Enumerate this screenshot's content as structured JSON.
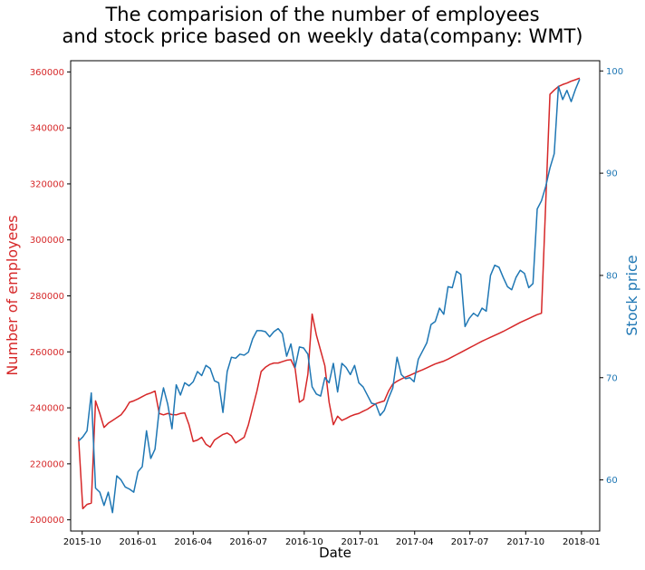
{
  "chart_data": {
    "type": "line",
    "title_lines": [
      "The comparision of the number of employees",
      "and stock price based on weekly data(company: WMT)"
    ],
    "xlabel": "Date",
    "ylabel_left": "Number of employees",
    "ylabel_right": "Stock price",
    "x_ticks": [
      "2015-10",
      "2016-01",
      "2016-04",
      "2016-07",
      "2016-10",
      "2017-01",
      "2017-04",
      "2017-07",
      "2017-10",
      "2018-01"
    ],
    "xlim": [
      "2015-09-12",
      "2018-01-31"
    ],
    "y_left_ticks": [
      200000,
      220000,
      240000,
      260000,
      280000,
      300000,
      320000,
      340000,
      360000
    ],
    "y_left_lim": [
      196000,
      364000
    ],
    "y_right_ticks": [
      60,
      70,
      80,
      90,
      100
    ],
    "y_right_lim": [
      55.0,
      101.0
    ],
    "grid": false,
    "colors": {
      "employees": "#d62728",
      "stock": "#1f77b4"
    },
    "series": [
      {
        "axis": "left",
        "color": "#d62728",
        "points": [
          [
            "2015-09-25",
            229500
          ],
          [
            "2015-10-02",
            204000
          ],
          [
            "2015-10-09",
            205500
          ],
          [
            "2015-10-16",
            206000
          ],
          [
            "2015-10-23",
            242500
          ],
          [
            "2015-10-30",
            238000
          ],
          [
            "2015-11-06",
            233000
          ],
          [
            "2015-11-13",
            234500
          ],
          [
            "2015-11-20",
            235500
          ],
          [
            "2015-11-27",
            236500
          ],
          [
            "2015-12-04",
            237500
          ],
          [
            "2015-12-11",
            239500
          ],
          [
            "2015-12-18",
            242000
          ],
          [
            "2015-12-25",
            242500
          ],
          [
            "2016-01-01",
            243200
          ],
          [
            "2016-01-08",
            244000
          ],
          [
            "2016-01-15",
            244800
          ],
          [
            "2016-01-22",
            245300
          ],
          [
            "2016-01-29",
            246000
          ],
          [
            "2016-02-05",
            238000
          ],
          [
            "2016-02-12",
            237500
          ],
          [
            "2016-02-19",
            238000
          ],
          [
            "2016-02-26",
            237600
          ],
          [
            "2016-03-04",
            237500
          ],
          [
            "2016-03-11",
            238000
          ],
          [
            "2016-03-18",
            238200
          ],
          [
            "2016-03-25",
            234000
          ],
          [
            "2016-04-01",
            228000
          ],
          [
            "2016-04-08",
            228500
          ],
          [
            "2016-04-15",
            229500
          ],
          [
            "2016-04-22",
            227000
          ],
          [
            "2016-04-29",
            226000
          ],
          [
            "2016-05-06",
            228500
          ],
          [
            "2016-05-13",
            229500
          ],
          [
            "2016-05-20",
            230500
          ],
          [
            "2016-05-27",
            231000
          ],
          [
            "2016-06-03",
            230000
          ],
          [
            "2016-06-10",
            227500
          ],
          [
            "2016-06-17",
            228500
          ],
          [
            "2016-06-24",
            229500
          ],
          [
            "2016-07-01",
            234000
          ],
          [
            "2016-07-08",
            240000
          ],
          [
            "2016-07-15",
            246000
          ],
          [
            "2016-07-22",
            253000
          ],
          [
            "2016-07-29",
            254500
          ],
          [
            "2016-08-05",
            255500
          ],
          [
            "2016-08-12",
            256000
          ],
          [
            "2016-08-19",
            256000
          ],
          [
            "2016-08-26",
            256500
          ],
          [
            "2016-09-02",
            257000
          ],
          [
            "2016-09-09",
            257200
          ],
          [
            "2016-09-16",
            254000
          ],
          [
            "2016-09-23",
            242000
          ],
          [
            "2016-09-30",
            243000
          ],
          [
            "2016-10-07",
            252000
          ],
          [
            "2016-10-14",
            273500
          ],
          [
            "2016-10-21",
            266000
          ],
          [
            "2016-10-28",
            260500
          ],
          [
            "2016-11-04",
            255000
          ],
          [
            "2016-11-11",
            242000
          ],
          [
            "2016-11-18",
            234000
          ],
          [
            "2016-11-25",
            237000
          ],
          [
            "2016-12-02",
            235500
          ],
          [
            "2016-12-09",
            236200
          ],
          [
            "2016-12-16",
            237000
          ],
          [
            "2016-12-23",
            237600
          ],
          [
            "2016-12-30",
            238000
          ],
          [
            "2017-01-06",
            238800
          ],
          [
            "2017-01-13",
            239500
          ],
          [
            "2017-01-20",
            240500
          ],
          [
            "2017-01-27",
            241500
          ],
          [
            "2017-02-03",
            242000
          ],
          [
            "2017-02-10",
            242500
          ],
          [
            "2017-02-17",
            246000
          ],
          [
            "2017-02-24",
            248500
          ],
          [
            "2017-03-03",
            249500
          ],
          [
            "2017-03-10",
            250300
          ],
          [
            "2017-03-17",
            251000
          ],
          [
            "2017-03-24",
            251600
          ],
          [
            "2017-03-31",
            252300
          ],
          [
            "2017-04-07",
            253000
          ],
          [
            "2017-04-14",
            253600
          ],
          [
            "2017-04-21",
            254300
          ],
          [
            "2017-04-28",
            255000
          ],
          [
            "2017-05-05",
            255700
          ],
          [
            "2017-05-12",
            256200
          ],
          [
            "2017-05-19",
            256700
          ],
          [
            "2017-05-26",
            257400
          ],
          [
            "2017-06-02",
            258200
          ],
          [
            "2017-06-09",
            259000
          ],
          [
            "2017-06-16",
            259800
          ],
          [
            "2017-06-23",
            260600
          ],
          [
            "2017-06-30",
            261400
          ],
          [
            "2017-07-07",
            262200
          ],
          [
            "2017-07-14",
            263000
          ],
          [
            "2017-07-21",
            263800
          ],
          [
            "2017-07-28",
            264500
          ],
          [
            "2017-08-04",
            265200
          ],
          [
            "2017-08-11",
            265900
          ],
          [
            "2017-08-18",
            266600
          ],
          [
            "2017-08-25",
            267300
          ],
          [
            "2017-09-01",
            268100
          ],
          [
            "2017-09-08",
            268900
          ],
          [
            "2017-09-15",
            269700
          ],
          [
            "2017-09-22",
            270500
          ],
          [
            "2017-09-29",
            271200
          ],
          [
            "2017-10-06",
            271900
          ],
          [
            "2017-10-13",
            272600
          ],
          [
            "2017-10-20",
            273300
          ],
          [
            "2017-10-27",
            273800
          ],
          [
            "2017-11-03",
            313000
          ],
          [
            "2017-11-10",
            352000
          ],
          [
            "2017-11-17",
            353500
          ],
          [
            "2017-11-24",
            354800
          ],
          [
            "2017-12-01",
            355500
          ],
          [
            "2017-12-08",
            356000
          ],
          [
            "2017-12-15",
            356700
          ],
          [
            "2017-12-22",
            357200
          ],
          [
            "2017-12-29",
            357800
          ]
        ]
      },
      {
        "axis": "right",
        "color": "#1f77b4",
        "points": [
          [
            "2015-09-25",
            63.8
          ],
          [
            "2015-10-02",
            64.2
          ],
          [
            "2015-10-09",
            64.8
          ],
          [
            "2015-10-16",
            68.5
          ],
          [
            "2015-10-23",
            59.2
          ],
          [
            "2015-10-30",
            58.8
          ],
          [
            "2015-11-06",
            57.5
          ],
          [
            "2015-11-13",
            58.8
          ],
          [
            "2015-11-20",
            56.8
          ],
          [
            "2015-11-27",
            60.4
          ],
          [
            "2015-12-04",
            60.0
          ],
          [
            "2015-12-11",
            59.3
          ],
          [
            "2015-12-18",
            59.1
          ],
          [
            "2015-12-25",
            58.8
          ],
          [
            "2016-01-01",
            60.8
          ],
          [
            "2016-01-08",
            61.3
          ],
          [
            "2016-01-15",
            64.8
          ],
          [
            "2016-01-22",
            62.1
          ],
          [
            "2016-01-29",
            63.0
          ],
          [
            "2016-02-05",
            66.9
          ],
          [
            "2016-02-12",
            69.0
          ],
          [
            "2016-02-19",
            67.4
          ],
          [
            "2016-02-26",
            65.0
          ],
          [
            "2016-03-04",
            69.3
          ],
          [
            "2016-03-11",
            68.3
          ],
          [
            "2016-03-18",
            69.5
          ],
          [
            "2016-03-25",
            69.2
          ],
          [
            "2016-04-01",
            69.6
          ],
          [
            "2016-04-08",
            70.6
          ],
          [
            "2016-04-15",
            70.2
          ],
          [
            "2016-04-22",
            71.2
          ],
          [
            "2016-04-29",
            70.9
          ],
          [
            "2016-05-06",
            69.7
          ],
          [
            "2016-05-13",
            69.5
          ],
          [
            "2016-05-20",
            66.6
          ],
          [
            "2016-05-27",
            70.6
          ],
          [
            "2016-06-03",
            72.0
          ],
          [
            "2016-06-10",
            71.9
          ],
          [
            "2016-06-17",
            72.3
          ],
          [
            "2016-06-24",
            72.2
          ],
          [
            "2016-07-01",
            72.5
          ],
          [
            "2016-07-08",
            73.8
          ],
          [
            "2016-07-15",
            74.6
          ],
          [
            "2016-07-22",
            74.6
          ],
          [
            "2016-07-29",
            74.5
          ],
          [
            "2016-08-05",
            74.0
          ],
          [
            "2016-08-12",
            74.5
          ],
          [
            "2016-08-19",
            74.8
          ],
          [
            "2016-08-26",
            74.3
          ],
          [
            "2016-09-02",
            72.1
          ],
          [
            "2016-09-09",
            73.3
          ],
          [
            "2016-09-16",
            71.0
          ],
          [
            "2016-09-23",
            73.0
          ],
          [
            "2016-09-30",
            72.9
          ],
          [
            "2016-10-07",
            72.3
          ],
          [
            "2016-10-14",
            69.1
          ],
          [
            "2016-10-21",
            68.4
          ],
          [
            "2016-10-28",
            68.2
          ],
          [
            "2016-11-04",
            70.0
          ],
          [
            "2016-11-11",
            69.5
          ],
          [
            "2016-11-18",
            71.4
          ],
          [
            "2016-11-25",
            68.6
          ],
          [
            "2016-12-02",
            71.4
          ],
          [
            "2016-12-09",
            71.0
          ],
          [
            "2016-12-16",
            70.3
          ],
          [
            "2016-12-23",
            71.2
          ],
          [
            "2016-12-30",
            69.5
          ],
          [
            "2017-01-06",
            69.1
          ],
          [
            "2017-01-13",
            68.3
          ],
          [
            "2017-01-20",
            67.5
          ],
          [
            "2017-01-27",
            67.4
          ],
          [
            "2017-02-03",
            66.3
          ],
          [
            "2017-02-10",
            66.8
          ],
          [
            "2017-02-17",
            68.0
          ],
          [
            "2017-02-24",
            69.0
          ],
          [
            "2017-03-03",
            72.0
          ],
          [
            "2017-03-10",
            70.3
          ],
          [
            "2017-03-17",
            69.9
          ],
          [
            "2017-03-24",
            70.0
          ],
          [
            "2017-03-31",
            69.6
          ],
          [
            "2017-04-07",
            71.8
          ],
          [
            "2017-04-14",
            72.6
          ],
          [
            "2017-04-21",
            73.4
          ],
          [
            "2017-04-28",
            75.2
          ],
          [
            "2017-05-05",
            75.5
          ],
          [
            "2017-05-12",
            76.8
          ],
          [
            "2017-05-19",
            76.2
          ],
          [
            "2017-05-26",
            78.9
          ],
          [
            "2017-06-02",
            78.8
          ],
          [
            "2017-06-09",
            80.4
          ],
          [
            "2017-06-16",
            80.1
          ],
          [
            "2017-06-23",
            75.0
          ],
          [
            "2017-06-30",
            75.8
          ],
          [
            "2017-07-07",
            76.3
          ],
          [
            "2017-07-14",
            76.0
          ],
          [
            "2017-07-21",
            76.8
          ],
          [
            "2017-07-28",
            76.5
          ],
          [
            "2017-08-04",
            80.0
          ],
          [
            "2017-08-11",
            81.0
          ],
          [
            "2017-08-18",
            80.8
          ],
          [
            "2017-08-25",
            79.8
          ],
          [
            "2017-09-01",
            78.9
          ],
          [
            "2017-09-08",
            78.6
          ],
          [
            "2017-09-15",
            79.8
          ],
          [
            "2017-09-22",
            80.5
          ],
          [
            "2017-09-29",
            80.2
          ],
          [
            "2017-10-06",
            78.8
          ],
          [
            "2017-10-13",
            79.2
          ],
          [
            "2017-10-20",
            86.5
          ],
          [
            "2017-10-27",
            87.3
          ],
          [
            "2017-11-03",
            88.7
          ],
          [
            "2017-11-10",
            90.5
          ],
          [
            "2017-11-17",
            91.9
          ],
          [
            "2017-11-24",
            98.5
          ],
          [
            "2017-12-01",
            97.2
          ],
          [
            "2017-12-08",
            98.1
          ],
          [
            "2017-12-15",
            97.0
          ],
          [
            "2017-12-22",
            98.2
          ],
          [
            "2017-12-29",
            99.2
          ]
        ]
      }
    ]
  }
}
